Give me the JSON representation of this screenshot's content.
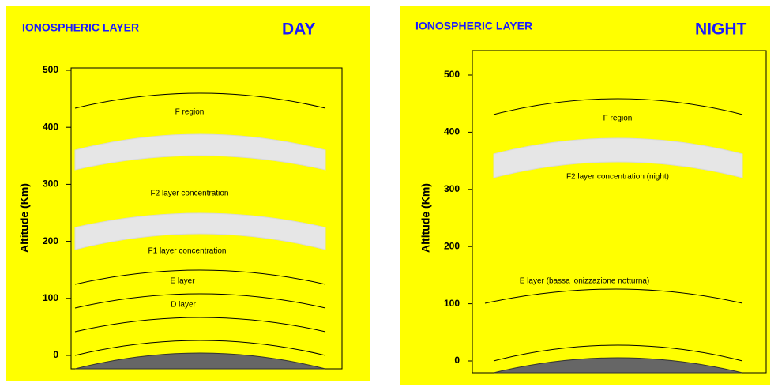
{
  "panels": [
    {
      "title": "IONOSPHERIC LAYER",
      "mode": "DAY",
      "y_axis_label": "Altitude (Km)",
      "yticks": [
        0,
        100,
        200,
        300,
        400,
        500
      ],
      "layers": [
        "F region",
        "F2  layer concentration",
        "F1  layer concentration",
        "E layer",
        "D layer"
      ]
    },
    {
      "title": "IONOSPHERIC LAYER",
      "mode": "NIGHT",
      "y_axis_label": "Altitude (Km)",
      "yticks": [
        0,
        100,
        200,
        300,
        400,
        500
      ],
      "layers": [
        "F region",
        "F2  layer concentration (night)",
        "E layer (bassa ionizzazione notturna)"
      ]
    }
  ]
}
